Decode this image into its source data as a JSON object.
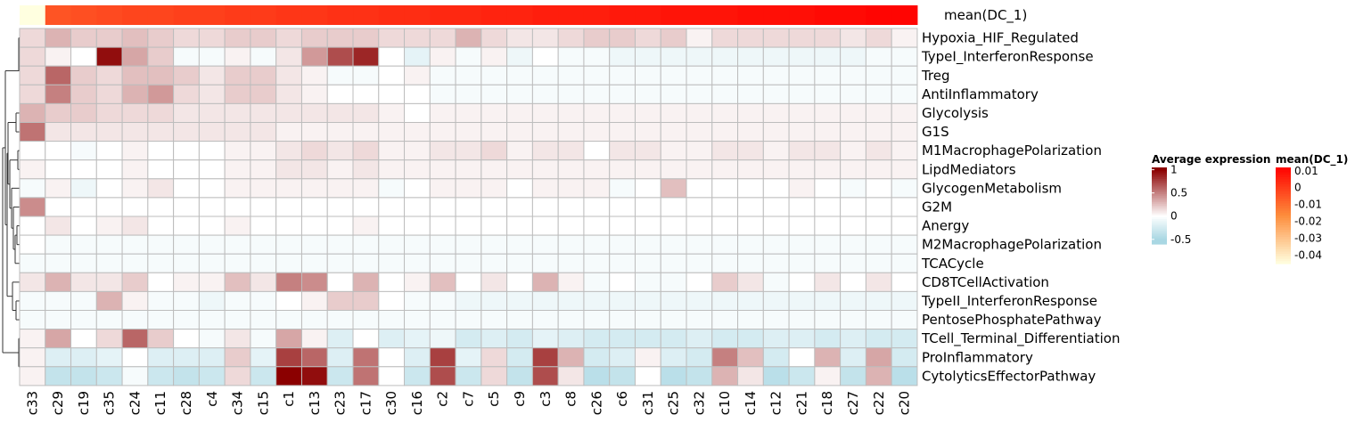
{
  "chart_data": {
    "type": "heatmap",
    "columns": [
      "c33",
      "c29",
      "c19",
      "c35",
      "c24",
      "c11",
      "c28",
      "c4",
      "c34",
      "c15",
      "c1",
      "c13",
      "c23",
      "c17",
      "c30",
      "c16",
      "c2",
      "c7",
      "c5",
      "c9",
      "c3",
      "c8",
      "c26",
      "c6",
      "c31",
      "c25",
      "c32",
      "c10",
      "c14",
      "c12",
      "c21",
      "c18",
      "c27",
      "c22",
      "c20"
    ],
    "rows": [
      "Hypoxia_HIF_Regulated",
      "TypeI_InterferonResponse",
      "Treg",
      "AntiInflammatory",
      "Glycolysis",
      "G1S",
      "M1MacrophagePolarization",
      "LipdMediators",
      "GlycogenMetabolism",
      "G2M",
      "Anergy",
      "M2MacrophagePolarization",
      "TCACycle",
      "CD8TCellActivation",
      "TypeII_InterferonResponse",
      "PentosePhosphatePathway",
      "TCell_Terminal_Differentiation",
      "ProInflammatory",
      "CytolyticsEffectorPathway"
    ],
    "values": [
      [
        0.15,
        0.3,
        0.2,
        0.2,
        0.25,
        0.2,
        0.15,
        0.15,
        0.2,
        0.2,
        0.15,
        0.2,
        0.2,
        0.2,
        0.15,
        0.15,
        0.15,
        0.3,
        0.15,
        0.1,
        0.1,
        0.15,
        0.2,
        0.2,
        0.15,
        0.2,
        0.05,
        0.15,
        0.15,
        0.15,
        0.15,
        0.15,
        0.1,
        0.15,
        0.05
      ],
      [
        0.15,
        0.05,
        0.0,
        0.95,
        0.35,
        0.2,
        -0.05,
        -0.05,
        0.05,
        -0.05,
        0.1,
        0.4,
        0.7,
        0.85,
        0.0,
        -0.15,
        0.05,
        -0.05,
        0.05,
        -0.1,
        0.0,
        -0.05,
        -0.05,
        -0.1,
        -0.1,
        -0.1,
        -0.1,
        -0.1,
        -0.1,
        -0.1,
        -0.1,
        -0.1,
        -0.1,
        -0.05,
        -0.05
      ],
      [
        0.15,
        0.6,
        0.2,
        0.15,
        0.25,
        0.25,
        0.2,
        0.1,
        0.2,
        0.2,
        0.1,
        0.05,
        -0.05,
        -0.05,
        0.0,
        0.05,
        -0.05,
        -0.05,
        -0.05,
        -0.05,
        -0.05,
        -0.05,
        -0.05,
        -0.05,
        -0.05,
        -0.05,
        -0.05,
        -0.05,
        -0.05,
        -0.05,
        -0.05,
        -0.05,
        -0.05,
        -0.05,
        -0.05
      ],
      [
        0.15,
        0.5,
        0.2,
        0.15,
        0.3,
        0.4,
        0.15,
        0.1,
        0.2,
        0.2,
        0.1,
        0.05,
        0.0,
        0.0,
        0.0,
        0.0,
        -0.05,
        -0.05,
        -0.05,
        -0.05,
        -0.05,
        -0.05,
        -0.05,
        -0.05,
        -0.05,
        -0.05,
        -0.05,
        -0.05,
        -0.05,
        -0.05,
        -0.05,
        -0.05,
        -0.05,
        -0.05,
        -0.05
      ],
      [
        0.3,
        0.2,
        0.2,
        0.15,
        0.15,
        0.15,
        0.1,
        0.1,
        0.1,
        0.1,
        0.1,
        0.1,
        0.1,
        0.1,
        0.05,
        0.0,
        0.05,
        0.05,
        0.05,
        0.05,
        0.05,
        0.05,
        0.05,
        0.05,
        0.05,
        0.05,
        0.05,
        0.05,
        0.05,
        0.05,
        0.05,
        0.05,
        0.05,
        0.05,
        0.05
      ],
      [
        0.55,
        0.1,
        0.1,
        0.1,
        0.1,
        0.1,
        0.1,
        0.1,
        0.1,
        0.1,
        0.05,
        0.05,
        0.05,
        0.05,
        0.05,
        0.05,
        0.05,
        0.05,
        0.05,
        0.05,
        0.05,
        0.05,
        0.05,
        0.05,
        0.05,
        0.05,
        0.05,
        0.05,
        0.05,
        0.05,
        0.05,
        0.05,
        0.05,
        0.05,
        0.05
      ],
      [
        0.0,
        0.0,
        -0.05,
        0.0,
        0.05,
        0.0,
        0.0,
        0.0,
        0.05,
        0.05,
        0.1,
        0.15,
        0.1,
        0.15,
        0.05,
        0.05,
        0.1,
        0.1,
        0.15,
        0.05,
        0.1,
        0.1,
        0.0,
        0.1,
        0.1,
        0.05,
        0.05,
        0.1,
        0.1,
        0.05,
        0.1,
        0.1,
        0.05,
        0.1,
        0.05
      ],
      [
        0.05,
        0.0,
        0.0,
        0.0,
        0.05,
        0.0,
        0.0,
        0.0,
        0.05,
        0.05,
        0.1,
        0.1,
        0.05,
        0.1,
        0.05,
        0.05,
        0.05,
        0.05,
        0.05,
        0.05,
        0.05,
        0.05,
        0.05,
        0.05,
        0.05,
        0.05,
        0.05,
        0.05,
        0.05,
        0.05,
        0.05,
        0.05,
        0.05,
        0.05,
        0.05
      ],
      [
        -0.05,
        0.05,
        -0.1,
        0.0,
        0.05,
        0.1,
        0.0,
        0.0,
        0.05,
        0.05,
        0.05,
        0.05,
        0.05,
        0.05,
        -0.05,
        0.0,
        0.05,
        0.05,
        0.05,
        0.0,
        0.05,
        0.05,
        0.05,
        -0.05,
        0.0,
        0.25,
        0.0,
        0.0,
        0.0,
        0.0,
        0.05,
        0.0,
        -0.05,
        0.0,
        -0.05
      ],
      [
        0.45,
        0.0,
        0.0,
        0.0,
        0.0,
        0.0,
        0.0,
        0.0,
        0.0,
        0.0,
        0.0,
        0.0,
        0.0,
        0.0,
        0.0,
        0.0,
        0.0,
        0.0,
        0.0,
        0.0,
        0.0,
        0.0,
        0.0,
        0.0,
        0.0,
        0.0,
        0.0,
        0.0,
        0.0,
        0.0,
        0.0,
        0.0,
        0.0,
        0.0,
        0.0
      ],
      [
        0.0,
        0.1,
        0.0,
        0.05,
        0.1,
        0.0,
        0.0,
        0.0,
        0.05,
        0.0,
        0.0,
        0.0,
        0.0,
        0.05,
        0.0,
        0.0,
        0.0,
        0.0,
        0.0,
        0.0,
        0.0,
        0.0,
        0.0,
        0.0,
        0.0,
        0.0,
        0.0,
        0.0,
        0.0,
        0.0,
        0.0,
        0.0,
        0.0,
        0.0,
        0.0
      ],
      [
        0.0,
        -0.05,
        -0.05,
        -0.05,
        -0.05,
        -0.05,
        -0.05,
        -0.05,
        -0.05,
        -0.05,
        -0.05,
        -0.05,
        -0.05,
        -0.05,
        -0.05,
        -0.05,
        -0.05,
        -0.05,
        -0.05,
        -0.05,
        -0.05,
        -0.05,
        -0.05,
        -0.05,
        -0.05,
        -0.05,
        -0.05,
        -0.05,
        -0.05,
        -0.05,
        -0.05,
        -0.05,
        -0.05,
        -0.05,
        -0.05
      ],
      [
        -0.05,
        -0.05,
        -0.05,
        -0.05,
        -0.05,
        -0.05,
        -0.05,
        -0.05,
        -0.05,
        -0.05,
        -0.05,
        -0.05,
        -0.05,
        -0.05,
        -0.05,
        -0.05,
        -0.05,
        -0.05,
        -0.05,
        -0.05,
        -0.05,
        -0.05,
        -0.05,
        -0.05,
        -0.05,
        -0.05,
        -0.05,
        -0.05,
        -0.05,
        -0.05,
        -0.05,
        -0.05,
        -0.05,
        -0.05,
        -0.05
      ],
      [
        0.1,
        0.3,
        0.1,
        0.1,
        0.2,
        0.0,
        0.05,
        0.05,
        0.25,
        0.1,
        0.5,
        0.45,
        0.0,
        0.3,
        0.0,
        0.05,
        0.25,
        0.0,
        0.1,
        0.0,
        0.3,
        0.05,
        -0.05,
        0.0,
        -0.05,
        -0.05,
        0.0,
        0.2,
        0.1,
        -0.05,
        0.0,
        0.1,
        0.0,
        0.1,
        0.0
      ],
      [
        -0.05,
        -0.05,
        -0.05,
        0.3,
        0.05,
        -0.05,
        -0.05,
        -0.1,
        -0.05,
        -0.05,
        0.0,
        0.05,
        0.2,
        0.2,
        0.0,
        -0.05,
        -0.05,
        -0.1,
        -0.1,
        -0.1,
        -0.1,
        -0.1,
        -0.1,
        -0.1,
        -0.1,
        -0.1,
        -0.1,
        -0.1,
        -0.1,
        -0.1,
        -0.1,
        -0.1,
        -0.1,
        -0.1,
        -0.1
      ],
      [
        -0.05,
        -0.05,
        -0.05,
        -0.05,
        -0.05,
        -0.05,
        -0.05,
        -0.05,
        -0.05,
        -0.05,
        -0.05,
        -0.05,
        -0.05,
        -0.05,
        -0.05,
        -0.05,
        -0.05,
        -0.05,
        -0.05,
        -0.05,
        -0.05,
        -0.05,
        -0.05,
        -0.05,
        -0.05,
        -0.05,
        -0.05,
        -0.05,
        -0.05,
        -0.05,
        -0.05,
        -0.05,
        -0.05,
        -0.05,
        -0.05
      ],
      [
        0.05,
        0.35,
        0.0,
        0.15,
        0.6,
        0.2,
        0.0,
        -0.05,
        0.1,
        -0.05,
        0.35,
        0.05,
        -0.2,
        0.0,
        -0.2,
        -0.15,
        -0.1,
        -0.25,
        -0.2,
        -0.25,
        -0.15,
        -0.2,
        -0.25,
        -0.25,
        -0.25,
        -0.25,
        -0.2,
        -0.25,
        -0.25,
        -0.2,
        -0.2,
        -0.25,
        -0.2,
        -0.25,
        -0.25
      ],
      [
        0.05,
        -0.2,
        -0.2,
        -0.15,
        0.0,
        -0.2,
        -0.2,
        -0.2,
        0.2,
        -0.15,
        0.75,
        0.6,
        -0.2,
        0.55,
        0.0,
        -0.2,
        0.75,
        -0.15,
        0.15,
        -0.25,
        0.75,
        0.3,
        -0.25,
        -0.2,
        0.05,
        -0.2,
        -0.25,
        0.5,
        0.25,
        -0.25,
        0.0,
        0.3,
        -0.2,
        0.35,
        -0.25
      ],
      [
        0.05,
        -0.35,
        -0.35,
        -0.3,
        -0.05,
        -0.3,
        -0.35,
        -0.3,
        0.15,
        -0.3,
        1.0,
        0.95,
        -0.3,
        0.55,
        0.0,
        -0.3,
        0.7,
        -0.3,
        0.15,
        -0.35,
        0.7,
        0.1,
        -0.4,
        -0.35,
        0.0,
        -0.4,
        -0.35,
        0.3,
        0.1,
        -0.4,
        -0.3,
        0.05,
        -0.35,
        0.3,
        -0.4
      ]
    ],
    "annotation": {
      "name": "mean(DC_1)",
      "values": [
        -0.045,
        -0.005,
        -0.004,
        -0.003,
        -0.002,
        -0.002,
        -0.001,
        -0.001,
        0.0,
        0.0,
        0.001,
        0.001,
        0.002,
        0.002,
        0.003,
        0.003,
        0.004,
        0.004,
        0.005,
        0.005,
        0.006,
        0.006,
        0.006,
        0.007,
        0.007,
        0.008,
        0.008,
        0.008,
        0.009,
        0.009,
        0.009,
        0.01,
        0.01,
        0.011,
        0.011
      ],
      "legend_title": "mean(DC_1)",
      "legend_ticks": [
        "0.01",
        "0",
        "-0.01",
        "-0.02",
        "-0.03",
        "-0.04"
      ],
      "legend_range": [
        -0.045,
        0.012
      ]
    },
    "color_legend": {
      "title": "Average expression",
      "ticks": [
        "1",
        "0.5",
        "0",
        "-0.5"
      ],
      "range": [
        -0.6,
        1.05
      ]
    },
    "colors": {
      "high": "#8b0000",
      "mid": "#ffffff",
      "low": "#a9d7e3",
      "ann_high": "#ff0000",
      "ann_low": "#ffffe0",
      "grid": "#bdbdbd",
      "dendrogram": "#333333"
    },
    "row_dendrogram": true
  }
}
